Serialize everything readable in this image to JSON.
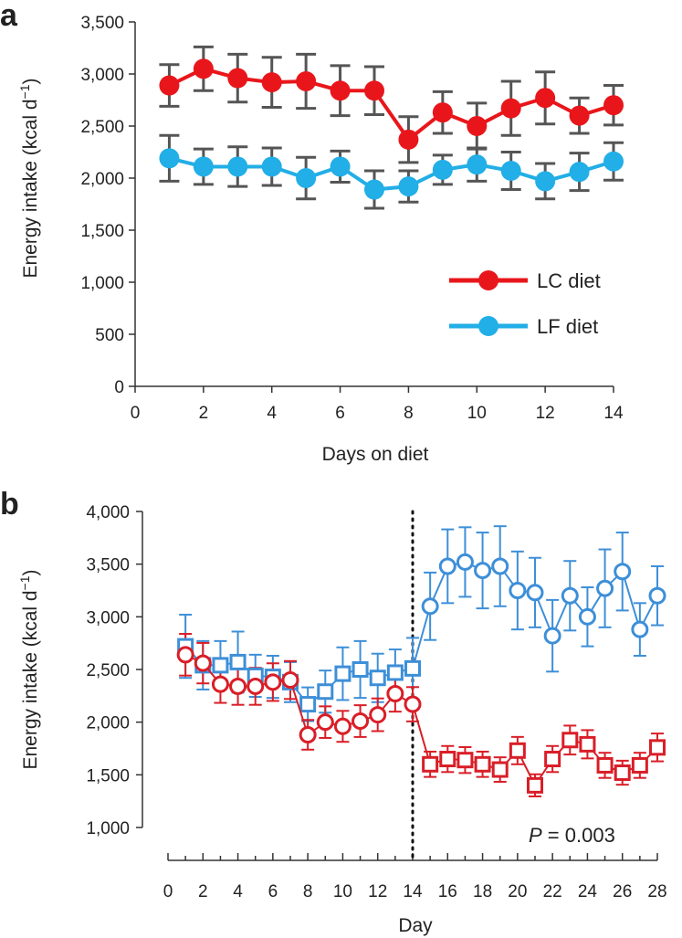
{
  "chart_data": [
    {
      "panel_label": "a",
      "type": "line",
      "title": "",
      "xlabel": "Days on diet",
      "ylabel": "Energy intake (kcal d",
      "ylabel_exponent": "−1",
      "ylabel_close": ")",
      "xlim": [
        0,
        14
      ],
      "ylim": [
        0,
        3500
      ],
      "xticks": [
        "0",
        "2",
        "4",
        "6",
        "8",
        "10",
        "12",
        "14"
      ],
      "yticks": [
        "0",
        "500",
        "1,000",
        "1,500",
        "2,000",
        "2,500",
        "3,000",
        "3,500"
      ],
      "legend_position": "bottom-right",
      "x": [
        1,
        2,
        3,
        4,
        5,
        6,
        7,
        8,
        9,
        10,
        11,
        12,
        13,
        14
      ],
      "series": [
        {
          "name": "LC diet",
          "color": "#e8161b",
          "marker": "filled-circle",
          "values": [
            2890,
            3050,
            2960,
            2920,
            2930,
            2840,
            2840,
            2370,
            2630,
            2500,
            2670,
            2770,
            2600,
            2700
          ],
          "errors": [
            200,
            210,
            230,
            240,
            260,
            240,
            230,
            220,
            200,
            220,
            260,
            250,
            170,
            190
          ]
        },
        {
          "name": "LF diet",
          "color": "#22aee6",
          "marker": "filled-circle",
          "values": [
            2190,
            2110,
            2110,
            2110,
            2000,
            2110,
            1890,
            1920,
            2080,
            2130,
            2070,
            1970,
            2060,
            2160
          ],
          "errors": [
            220,
            170,
            190,
            180,
            200,
            150,
            180,
            150,
            140,
            160,
            180,
            170,
            180,
            180
          ]
        }
      ]
    },
    {
      "panel_label": "b",
      "type": "line",
      "title": "",
      "xlabel": "Day",
      "ylabel": "Energy intake (kcal d",
      "ylabel_exponent": "−1",
      "ylabel_close": ")",
      "xlim": [
        0,
        28
      ],
      "ylim": [
        1000,
        4000
      ],
      "xticks": [
        "0",
        "2",
        "4",
        "6",
        "8",
        "10",
        "12",
        "14",
        "16",
        "18",
        "20",
        "22",
        "24",
        "26",
        "28"
      ],
      "yticks": [
        "1,000",
        "1,500",
        "2,000",
        "2,500",
        "3,000",
        "3,500",
        "4,000"
      ],
      "divider_day": 14,
      "annotation": {
        "italic": "P",
        "rest": " = 0.003"
      },
      "series": [
        {
          "name": "Blue",
          "color": "#3d8fd8",
          "x": [
            1,
            2,
            3,
            4,
            5,
            6,
            7,
            8,
            9,
            10,
            11,
            12,
            13,
            14,
            15,
            16,
            17,
            18,
            19,
            20,
            21,
            22,
            23,
            24,
            25,
            26,
            27,
            28
          ],
          "markers": [
            "square",
            "square",
            "square",
            "square",
            "square",
            "square",
            "square",
            "square",
            "square",
            "square",
            "square",
            "square",
            "square",
            "square",
            "circle",
            "circle",
            "circle",
            "circle",
            "circle",
            "circle",
            "circle",
            "circle",
            "circle",
            "circle",
            "circle",
            "circle",
            "circle",
            "circle"
          ],
          "values": [
            2720,
            2540,
            2540,
            2570,
            2440,
            2430,
            2380,
            2170,
            2290,
            2460,
            2500,
            2420,
            2470,
            2510,
            3100,
            3480,
            3520,
            3440,
            3480,
            3250,
            3230,
            2820,
            3200,
            3000,
            3270,
            3430,
            2880,
            3200
          ],
          "errors": [
            300,
            230,
            230,
            290,
            200,
            200,
            190,
            160,
            200,
            250,
            270,
            230,
            220,
            290,
            320,
            350,
            330,
            360,
            380,
            370,
            330,
            340,
            330,
            280,
            370,
            370,
            250,
            280
          ]
        },
        {
          "name": "Red",
          "color": "#d91e27",
          "x": [
            1,
            2,
            3,
            4,
            5,
            6,
            7,
            8,
            9,
            10,
            11,
            12,
            13,
            14,
            15,
            16,
            17,
            18,
            19,
            20,
            21,
            22,
            23,
            24,
            25,
            26,
            27,
            28
          ],
          "markers": [
            "circle",
            "circle",
            "circle",
            "circle",
            "circle",
            "circle",
            "circle",
            "circle",
            "circle",
            "circle",
            "circle",
            "circle",
            "circle",
            "circle",
            "square",
            "square",
            "square",
            "square",
            "square",
            "square",
            "square",
            "square",
            "square",
            "square",
            "square",
            "square",
            "square",
            "square"
          ],
          "values": [
            2640,
            2560,
            2360,
            2340,
            2340,
            2380,
            2400,
            1880,
            2000,
            1960,
            2010,
            2070,
            2270,
            2170,
            1600,
            1650,
            1640,
            1600,
            1550,
            1730,
            1400,
            1650,
            1830,
            1790,
            1590,
            1520,
            1590,
            1760
          ]
        }
      ]
    }
  ]
}
